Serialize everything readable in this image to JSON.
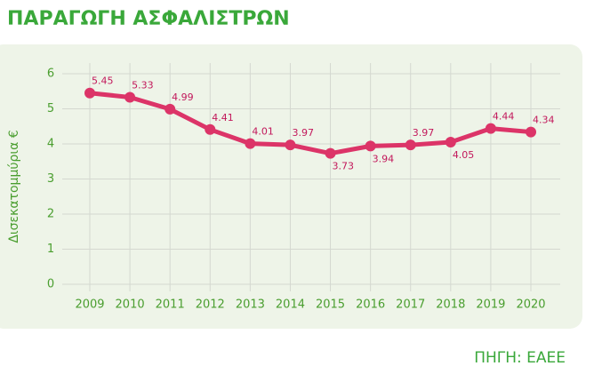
{
  "chart_data": {
    "type": "line",
    "title": "ΠΑΡΑΓΩΓΗ ΑΣΦΑΛΙΣΤΡΩΝ",
    "y_label": "Δισεκατομμύρια €",
    "source": "ΠΗΓΗ: ΕΑΕΕ",
    "categories": [
      "2009",
      "2010",
      "2011",
      "2012",
      "2013",
      "2014",
      "2015",
      "2016",
      "2017",
      "2018",
      "2019",
      "2020"
    ],
    "series": [
      {
        "name": "Παραγωγή ασφαλίστρων",
        "color": "#dc3468",
        "values": [
          5.45,
          5.33,
          4.99,
          4.41,
          4.01,
          3.97,
          3.73,
          3.94,
          3.97,
          4.05,
          4.44,
          4.34
        ]
      }
    ],
    "ylim": [
      0,
      6
    ],
    "yticks": [
      0,
      1,
      2,
      3,
      4,
      5,
      6
    ],
    "grid": true
  }
}
